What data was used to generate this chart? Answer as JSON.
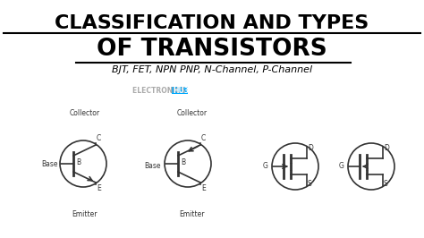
{
  "title_line1": "CLASSIFICATION AND TYPES",
  "title_line2": "OF TRANSISTORS",
  "subtitle": "BJT, FET, NPN PNP, N-Channel, P-Channel",
  "bg_color": "#ffffff",
  "title_color": "#000000",
  "subtitle_color": "#333333",
  "brand_text": "ELECTRONICS ",
  "brand_highlight": "HU3",
  "brand_highlight_bg": "#00aaff",
  "circuit_color": "#333333",
  "label_color": "#333333",
  "underline_color": "#000000"
}
